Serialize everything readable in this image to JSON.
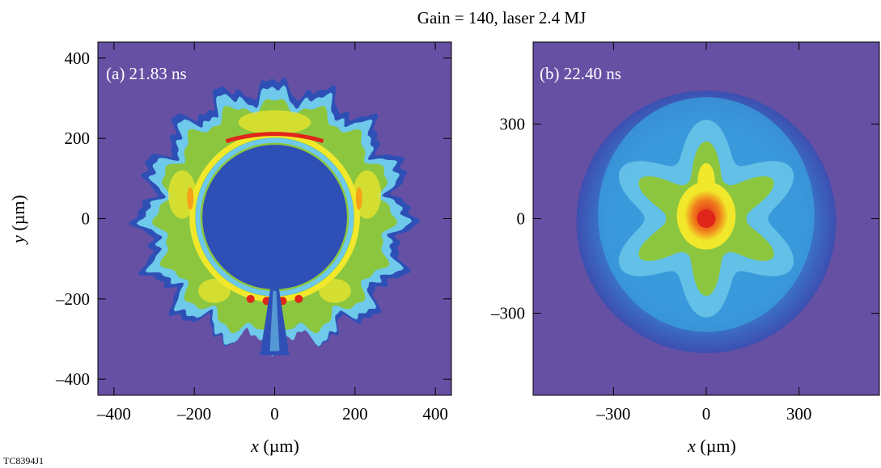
{
  "figure": {
    "title": "Gain = 140, laser 2.4 MJ",
    "figure_id": "TC8394J1",
    "colors": {
      "background": "#6650a4",
      "dark_blue": "#2e4fb5",
      "blue": "#3aa0dd",
      "cyan": "#6ec9ea",
      "green": "#8cc63f",
      "yellow": "#f2e82b",
      "orange": "#f7a21b",
      "red": "#e0251b"
    }
  },
  "chart_data": [
    {
      "type": "heatmap",
      "panel": "a",
      "label": "(a) 21.83 ns",
      "xlabel_var": "x",
      "ylabel_var": "y",
      "unit": " (µm)",
      "xlabel": "x (µm)",
      "ylabel": "y (µm)",
      "xlim": [
        -440,
        440
      ],
      "ylim": [
        -440,
        440
      ],
      "xticks": [
        -400,
        -200,
        0,
        200,
        400
      ],
      "yticks": [
        -400,
        -200,
        0,
        200,
        400
      ],
      "xtick_labels": [
        "–400",
        "–200",
        "0",
        "200",
        "400"
      ],
      "ytick_labels": [
        "–400",
        "–200",
        "0",
        "200",
        "400"
      ],
      "features": {
        "cavity_radius": 180,
        "shell_inner_radius": 185,
        "shell_outer_radius": 330,
        "spikes": 16
      }
    },
    {
      "type": "heatmap",
      "panel": "b",
      "label": "(b) 22.40 ns",
      "xlabel_var": "x",
      "unit": " (µm)",
      "xlabel": "x (µm)",
      "ylabel": "",
      "xlim": [
        -560,
        560
      ],
      "ylim": [
        -560,
        560
      ],
      "xticks": [
        -300,
        0,
        300
      ],
      "yticks": [
        -300,
        0,
        300
      ],
      "xtick_labels": [
        "–300",
        "0",
        "300"
      ],
      "ytick_labels": [
        "–300",
        "0",
        "300"
      ],
      "features": {
        "outer_radius": 420,
        "core_center": [
          0,
          0
        ]
      }
    }
  ]
}
